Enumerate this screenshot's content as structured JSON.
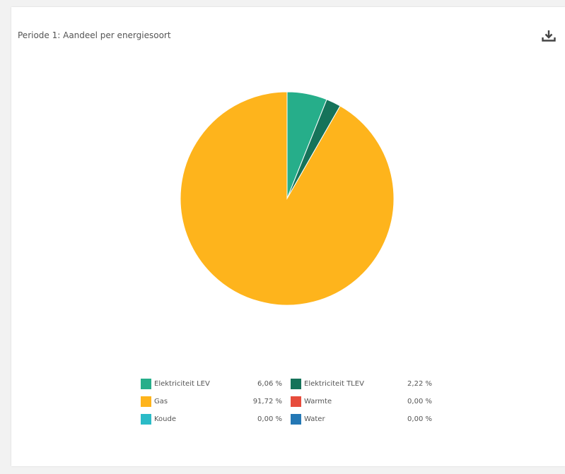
{
  "card": {
    "title": "Periode 1: Aandeel per energiesoort",
    "download_icon": "download-icon"
  },
  "chart_data": {
    "type": "pie",
    "title": "Periode 1: Aandeel per energiesoort",
    "slices": [
      {
        "label": "Elektriciteit LEV",
        "value": 6.06,
        "display": "6,06 %",
        "color": "#26ae8a"
      },
      {
        "label": "Elektriciteit TLEV",
        "value": 2.22,
        "display": "2,22 %",
        "color": "#16735a"
      },
      {
        "label": "Gas",
        "value": 91.72,
        "display": "91,72 %",
        "color": "#feb41c"
      },
      {
        "label": "Warmte",
        "value": 0.0,
        "display": "0,00 %",
        "color": "#e74c3c"
      },
      {
        "label": "Koude",
        "value": 0.0,
        "display": "0,00 %",
        "color": "#2bbbc7"
      },
      {
        "label": "Water",
        "value": 0.0,
        "display": "0,00 %",
        "color": "#2478b5"
      }
    ],
    "legend_order": [
      0,
      1,
      2,
      3,
      4,
      5
    ],
    "legend_placement": "bottom"
  }
}
